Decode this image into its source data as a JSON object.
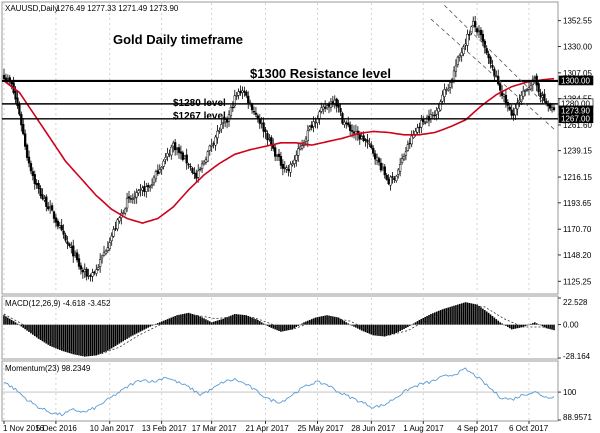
{
  "chart_data": [
    {
      "type": "candlestick",
      "header": {
        "symbol": "XAUUSD,Daily",
        "ohlc": "1276.49 1277.33 1271.49 1273.90"
      },
      "annotations": {
        "title": "Gold Daily timeframe",
        "resistance": "$1300 Resistance level",
        "level_1280": "$1280 level",
        "level_1267": "$1267 level"
      },
      "ylim": [
        1115,
        1368
      ],
      "yticks": [
        "1352.55",
        "1330.00",
        "1307.05",
        "1284.55",
        "1261.60",
        "1239.15",
        "1216.15",
        "1193.65",
        "1170.70",
        "1148.20",
        "1125.25"
      ],
      "price_tags": [
        {
          "label": "1300.00",
          "value": 1300.0,
          "style": "dark"
        },
        {
          "label": "1280.00",
          "value": 1280.0,
          "style": "light"
        },
        {
          "label": "1273.90",
          "value": 1273.9,
          "style": "dark"
        },
        {
          "label": "1267.00",
          "value": 1267.0,
          "style": "dark"
        }
      ],
      "horizontal_levels": [
        1300,
        1280,
        1267
      ],
      "xticks": [
        "1 Nov 2016",
        "5 Dec 2016",
        "10 Jan 2017",
        "13 Feb 2017",
        "17 Mar 2017",
        "21 Apr 2017",
        "25 May 2017",
        "28 Jun 2017",
        "1 Aug 2017",
        "4 Sep 2017",
        "6 Oct 2017"
      ],
      "close_path": [
        [
          0,
          1305
        ],
        [
          4,
          1296
        ],
        [
          8,
          1272
        ],
        [
          12,
          1235
        ],
        [
          16,
          1212
        ],
        [
          20,
          1198
        ],
        [
          24,
          1188
        ],
        [
          28,
          1175
        ],
        [
          32,
          1160
        ],
        [
          36,
          1150
        ],
        [
          40,
          1135
        ],
        [
          44,
          1130
        ],
        [
          48,
          1135
        ],
        [
          52,
          1150
        ],
        [
          56,
          1165
        ],
        [
          60,
          1180
        ],
        [
          64,
          1195
        ],
        [
          68,
          1198
        ],
        [
          72,
          1205
        ],
        [
          76,
          1208
        ],
        [
          80,
          1222
        ],
        [
          84,
          1232
        ],
        [
          88,
          1245
        ],
        [
          92,
          1235
        ],
        [
          96,
          1228
        ],
        [
          100,
          1215
        ],
        [
          104,
          1230
        ],
        [
          108,
          1245
        ],
        [
          112,
          1258
        ],
        [
          116,
          1265
        ],
        [
          120,
          1285
        ],
        [
          124,
          1293
        ],
        [
          128,
          1280
        ],
        [
          132,
          1268
        ],
        [
          136,
          1255
        ],
        [
          140,
          1240
        ],
        [
          144,
          1228
        ],
        [
          148,
          1222
        ],
        [
          152,
          1235
        ],
        [
          156,
          1248
        ],
        [
          160,
          1262
        ],
        [
          164,
          1272
        ],
        [
          168,
          1278
        ],
        [
          172,
          1285
        ],
        [
          176,
          1266
        ],
        [
          180,
          1258
        ],
        [
          184,
          1252
        ],
        [
          188,
          1248
        ],
        [
          192,
          1238
        ],
        [
          196,
          1225
        ],
        [
          200,
          1212
        ],
        [
          204,
          1218
        ],
        [
          208,
          1235
        ],
        [
          212,
          1250
        ],
        [
          216,
          1262
        ],
        [
          220,
          1268
        ],
        [
          224,
          1270
        ],
        [
          228,
          1288
        ],
        [
          232,
          1298
        ],
        [
          236,
          1318
        ],
        [
          240,
          1335
        ],
        [
          244,
          1350
        ],
        [
          248,
          1338
        ],
        [
          252,
          1318
        ],
        [
          256,
          1302
        ],
        [
          260,
          1285
        ],
        [
          264,
          1270
        ],
        [
          268,
          1282
        ],
        [
          272,
          1295
        ],
        [
          276,
          1300
        ],
        [
          280,
          1285
        ],
        [
          284,
          1276
        ],
        [
          286,
          1273.9
        ]
      ],
      "moving_average": [
        [
          0,
          1300
        ],
        [
          8,
          1290
        ],
        [
          16,
          1270
        ],
        [
          24,
          1250
        ],
        [
          32,
          1230
        ],
        [
          40,
          1215
        ],
        [
          48,
          1200
        ],
        [
          56,
          1188
        ],
        [
          64,
          1180
        ],
        [
          72,
          1176
        ],
        [
          80,
          1180
        ],
        [
          88,
          1190
        ],
        [
          96,
          1205
        ],
        [
          104,
          1218
        ],
        [
          112,
          1228
        ],
        [
          120,
          1236
        ],
        [
          128,
          1240
        ],
        [
          136,
          1243
        ],
        [
          144,
          1246
        ],
        [
          152,
          1246
        ],
        [
          160,
          1244
        ],
        [
          168,
          1247
        ],
        [
          176,
          1250
        ],
        [
          184,
          1254
        ],
        [
          192,
          1256
        ],
        [
          200,
          1255
        ],
        [
          208,
          1253
        ],
        [
          216,
          1253
        ],
        [
          224,
          1255
        ],
        [
          232,
          1260
        ],
        [
          240,
          1266
        ],
        [
          248,
          1278
        ],
        [
          256,
          1288
        ],
        [
          264,
          1295
        ],
        [
          272,
          1299
        ],
        [
          280,
          1301
        ],
        [
          286,
          1302
        ]
      ],
      "channel_lines": [
        [
          [
            229,
            1366
          ],
          [
            286,
            1272
          ]
        ],
        [
          [
            222,
            1354
          ],
          [
            286,
            1258
          ]
        ]
      ]
    },
    {
      "type": "bar",
      "header": {
        "label": "MACD(12,26,9) -4.618 -3.452"
      },
      "yticks": [
        "22.528",
        "0.00",
        "-28.164"
      ],
      "ylim": [
        -28.164,
        22.528
      ],
      "histogram": [
        [
          0,
          8
        ],
        [
          6,
          2
        ],
        [
          12,
          -5
        ],
        [
          18,
          -12
        ],
        [
          24,
          -18
        ],
        [
          30,
          -22
        ],
        [
          36,
          -25
        ],
        [
          42,
          -27
        ],
        [
          48,
          -26
        ],
        [
          54,
          -22
        ],
        [
          60,
          -16
        ],
        [
          66,
          -10
        ],
        [
          72,
          -5
        ],
        [
          78,
          0
        ],
        [
          84,
          4
        ],
        [
          90,
          8
        ],
        [
          96,
          10
        ],
        [
          102,
          7
        ],
        [
          108,
          2
        ],
        [
          114,
          5
        ],
        [
          120,
          9
        ],
        [
          126,
          8
        ],
        [
          132,
          4
        ],
        [
          138,
          -2
        ],
        [
          144,
          -6
        ],
        [
          150,
          -4
        ],
        [
          156,
          2
        ],
        [
          162,
          6
        ],
        [
          168,
          8
        ],
        [
          174,
          6
        ],
        [
          180,
          0
        ],
        [
          186,
          -5
        ],
        [
          192,
          -9
        ],
        [
          198,
          -10
        ],
        [
          204,
          -7
        ],
        [
          210,
          -2
        ],
        [
          216,
          4
        ],
        [
          222,
          9
        ],
        [
          228,
          13
        ],
        [
          234,
          16
        ],
        [
          240,
          19
        ],
        [
          246,
          17
        ],
        [
          252,
          10
        ],
        [
          258,
          2
        ],
        [
          264,
          -4
        ],
        [
          270,
          -2
        ],
        [
          276,
          2
        ],
        [
          282,
          -3
        ],
        [
          286,
          -4.618
        ]
      ],
      "signal": [
        [
          0,
          9
        ],
        [
          10,
          0
        ],
        [
          20,
          -12
        ],
        [
          30,
          -20
        ],
        [
          40,
          -25
        ],
        [
          50,
          -25
        ],
        [
          60,
          -19
        ],
        [
          70,
          -9
        ],
        [
          80,
          -1
        ],
        [
          90,
          6
        ],
        [
          100,
          8
        ],
        [
          110,
          5
        ],
        [
          120,
          7
        ],
        [
          130,
          6
        ],
        [
          140,
          0
        ],
        [
          150,
          -4
        ],
        [
          160,
          2
        ],
        [
          170,
          6
        ],
        [
          180,
          3
        ],
        [
          190,
          -5
        ],
        [
          200,
          -9
        ],
        [
          210,
          -5
        ],
        [
          220,
          4
        ],
        [
          230,
          11
        ],
        [
          240,
          16
        ],
        [
          250,
          15
        ],
        [
          260,
          5
        ],
        [
          270,
          -2
        ],
        [
          280,
          -2
        ],
        [
          286,
          -3.452
        ]
      ]
    },
    {
      "type": "line",
      "header": {
        "label": "Momentum(23) 98.2349"
      },
      "yticks": [
        "100",
        "88.9571"
      ],
      "ylim": [
        88.9571,
        111.5
      ],
      "reference": 100,
      "values": [
        [
          0,
          104
        ],
        [
          6,
          101
        ],
        [
          12,
          97
        ],
        [
          18,
          94
        ],
        [
          24,
          92
        ],
        [
          30,
          91
        ],
        [
          36,
          93
        ],
        [
          42,
          92
        ],
        [
          48,
          94
        ],
        [
          54,
          97
        ],
        [
          60,
          100
        ],
        [
          66,
          103
        ],
        [
          72,
          105
        ],
        [
          78,
          104
        ],
        [
          84,
          106
        ],
        [
          90,
          104
        ],
        [
          96,
          102
        ],
        [
          102,
          99
        ],
        [
          108,
          101
        ],
        [
          114,
          104
        ],
        [
          120,
          105
        ],
        [
          126,
          103
        ],
        [
          132,
          100
        ],
        [
          138,
          97
        ],
        [
          144,
          96
        ],
        [
          150,
          99
        ],
        [
          156,
          102
        ],
        [
          162,
          104
        ],
        [
          168,
          103
        ],
        [
          174,
          100
        ],
        [
          180,
          98
        ],
        [
          186,
          96
        ],
        [
          192,
          94
        ],
        [
          198,
          95
        ],
        [
          204,
          98
        ],
        [
          210,
          101
        ],
        [
          216,
          103
        ],
        [
          222,
          104
        ],
        [
          228,
          106
        ],
        [
          234,
          107
        ],
        [
          240,
          109
        ],
        [
          246,
          106
        ],
        [
          252,
          102
        ],
        [
          258,
          98
        ],
        [
          264,
          97
        ],
        [
          270,
          99
        ],
        [
          276,
          100
        ],
        [
          282,
          98
        ],
        [
          286,
          98.2349
        ]
      ]
    }
  ]
}
